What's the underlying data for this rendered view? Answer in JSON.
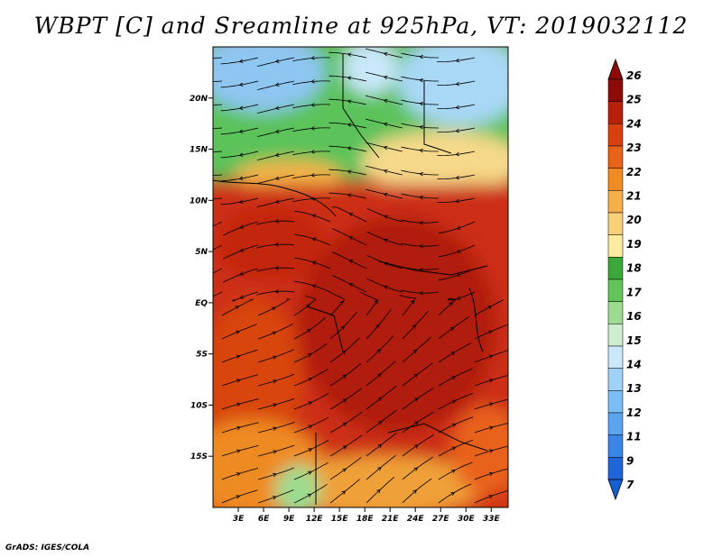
{
  "title": "WBPT [C] and Sreamline at 925hPa, VT: 2019032112",
  "footer": "GrADS: IGES/COLA",
  "map": {
    "lon_range": [
      0,
      35
    ],
    "lat_range": [
      -20,
      25
    ],
    "lon_ticks": [
      "3E",
      "6E",
      "9E",
      "12E",
      "15E",
      "18E",
      "21E",
      "24E",
      "27E",
      "30E",
      "33E"
    ],
    "lat_ticks": [
      "20N",
      "15N",
      "10N",
      "5N",
      "EQ",
      "5S",
      "10S",
      "15S"
    ]
  },
  "colorbar": {
    "labels": [
      "7",
      "9",
      "11",
      "12",
      "13",
      "14",
      "15",
      "16",
      "17",
      "18",
      "19",
      "20",
      "21",
      "22",
      "23",
      "24",
      "25",
      "26"
    ],
    "colors": [
      "#1f64d8",
      "#3a86e6",
      "#5aa4f0",
      "#7cbdf5",
      "#a0d2f8",
      "#c9e8fb",
      "#cfeed0",
      "#9ddc90",
      "#64c45c",
      "#3aa83a",
      "#fbeaa0",
      "#f8d07a",
      "#f4b04a",
      "#f08a22",
      "#e8621a",
      "#d8400f",
      "#b8200c",
      "#8c0a08"
    ],
    "low_color": "#1460d0",
    "high_color": "#8c0a08"
  }
}
